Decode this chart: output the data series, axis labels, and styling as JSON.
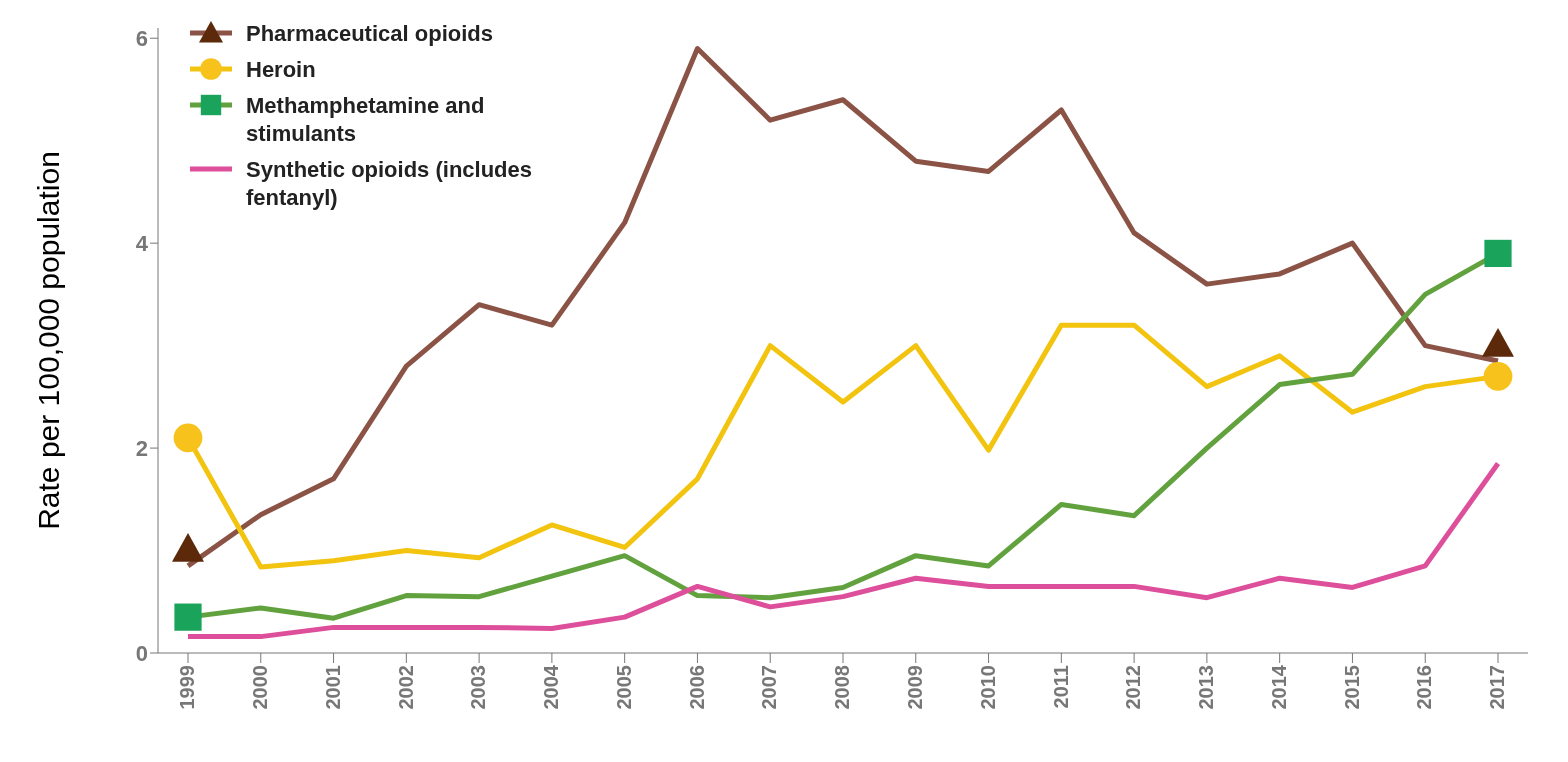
{
  "chart_data": {
    "type": "line",
    "ylabel": "Rate per 100,000 population",
    "categories": [
      "1999",
      "2000",
      "2001",
      "2002",
      "2003",
      "2004",
      "2005",
      "2006",
      "2007",
      "2008",
      "2009",
      "2010",
      "2011",
      "2012",
      "2013",
      "2014",
      "2015",
      "2016",
      "2017"
    ],
    "ylim": [
      0,
      6.1
    ],
    "yticks": [
      0,
      2,
      4,
      6
    ],
    "grid": false,
    "legend": "top left",
    "line_style": "solid",
    "series": [
      {
        "name": "Pharmaceutical opioids",
        "color": "#8b5346",
        "values": [
          0.85,
          1.35,
          1.7,
          2.8,
          3.4,
          3.2,
          4.2,
          5.9,
          5.2,
          5.4,
          4.8,
          4.7,
          5.3,
          4.1,
          3.6,
          3.7,
          4.0,
          3.0,
          2.85
        ]
      },
      {
        "name": "Heroin",
        "color": "#f2c40f",
        "values": [
          2.1,
          0.84,
          0.9,
          1.0,
          0.93,
          1.25,
          1.03,
          1.7,
          3.0,
          2.45,
          3.0,
          1.98,
          3.2,
          3.2,
          2.6,
          2.9,
          2.35,
          2.6,
          2.7
        ]
      },
      {
        "name": "Methamphetamine and stimulants",
        "color": "#62a23e",
        "values": [
          0.35,
          0.44,
          0.34,
          0.56,
          0.55,
          0.75,
          0.95,
          0.56,
          0.54,
          0.64,
          0.95,
          0.85,
          1.45,
          1.34,
          2.0,
          2.62,
          2.72,
          3.5,
          3.9
        ]
      },
      {
        "name": "Synthetic opioids (includes fentanyl)",
        "color": "#dd4f9a",
        "values": [
          0.16,
          0.16,
          0.25,
          0.25,
          0.25,
          0.24,
          0.35,
          0.65,
          0.45,
          0.55,
          0.73,
          0.65,
          0.65,
          0.65,
          0.54,
          0.73,
          0.64,
          0.85,
          1.85
        ]
      }
    ]
  }
}
